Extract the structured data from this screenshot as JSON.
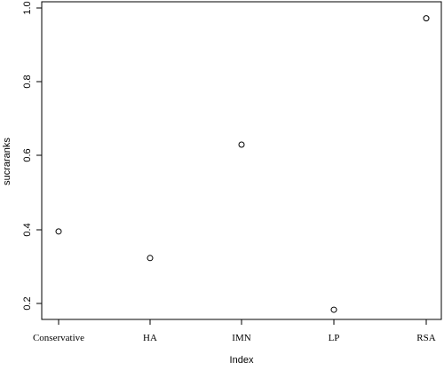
{
  "chart_data": {
    "type": "scatter",
    "categories": [
      "Conservative",
      "HA",
      "IMN",
      "LP",
      "RSA"
    ],
    "values": [
      0.395,
      0.323,
      0.63,
      0.183,
      0.972
    ],
    "xlabel": "Index",
    "ylabel": "sucraranks",
    "ylim": [
      0.16,
      1.0
    ],
    "yticks": [
      "0.2",
      "0.4",
      "0.6",
      "0.8",
      "1.0"
    ],
    "grid": false,
    "legend": "none"
  }
}
